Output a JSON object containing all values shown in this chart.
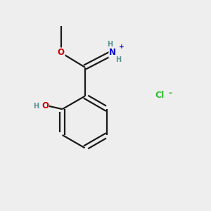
{
  "background_color": "#eeeeee",
  "fig_size": [
    3.0,
    3.0
  ],
  "dpi": 100,
  "bond_color": "#1a1a1a",
  "bond_width": 1.6,
  "atom_colors": {
    "O": "#cc0000",
    "N": "#0000cc",
    "Cl": "#33bb33",
    "C": "#1a1a1a",
    "H": "#5a9090"
  },
  "font_size_atoms": 8.5,
  "font_size_small": 7.0,
  "font_size_charge": 6.5,
  "font_size_cl": 9.0
}
